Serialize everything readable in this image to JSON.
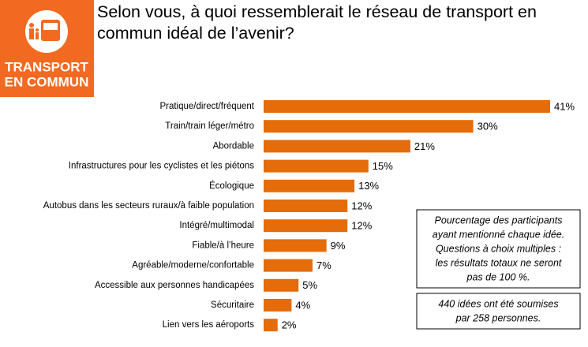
{
  "logo": {
    "line1": "TRANSPORT",
    "line2": "EN COMMUN"
  },
  "chart_data": {
    "type": "bar",
    "orientation": "horizontal",
    "title": "Selon vous, à quoi ressemblerait le réseau de transport en commun idéal de l’avenir?",
    "categories": [
      "Pratique/direct/fréquent",
      "Train/train léger/métro",
      "Abordable",
      "Infrastructures pour les cyclistes et les piétons",
      "Écologique",
      "Autobus dans les secteurs ruraux/à faible population",
      "Intégré/multimodal",
      "Fiable/à l’heure",
      "Agréable/moderne/confortable",
      "Accessible aux personnes handicapées",
      "Sécuritaire",
      "Lien vers les aéroports"
    ],
    "values": [
      41,
      30,
      21,
      15,
      13,
      12,
      12,
      9,
      7,
      5,
      4,
      2
    ],
    "value_labels": [
      "41%",
      "30%",
      "21%",
      "15%",
      "13%",
      "12%",
      "12%",
      "9%",
      "7%",
      "5%",
      "4%",
      "2%"
    ],
    "color": "#e46c0a",
    "notes": [
      [
        "Pourcentage des participants",
        "ayant mentionné chaque idée.",
        "Questions à choix multiples :",
        "les résultats totaux ne seront",
        "pas de 100 %."
      ],
      [
        "440 idées ont été soumises",
        "par 258 personnes."
      ]
    ]
  }
}
